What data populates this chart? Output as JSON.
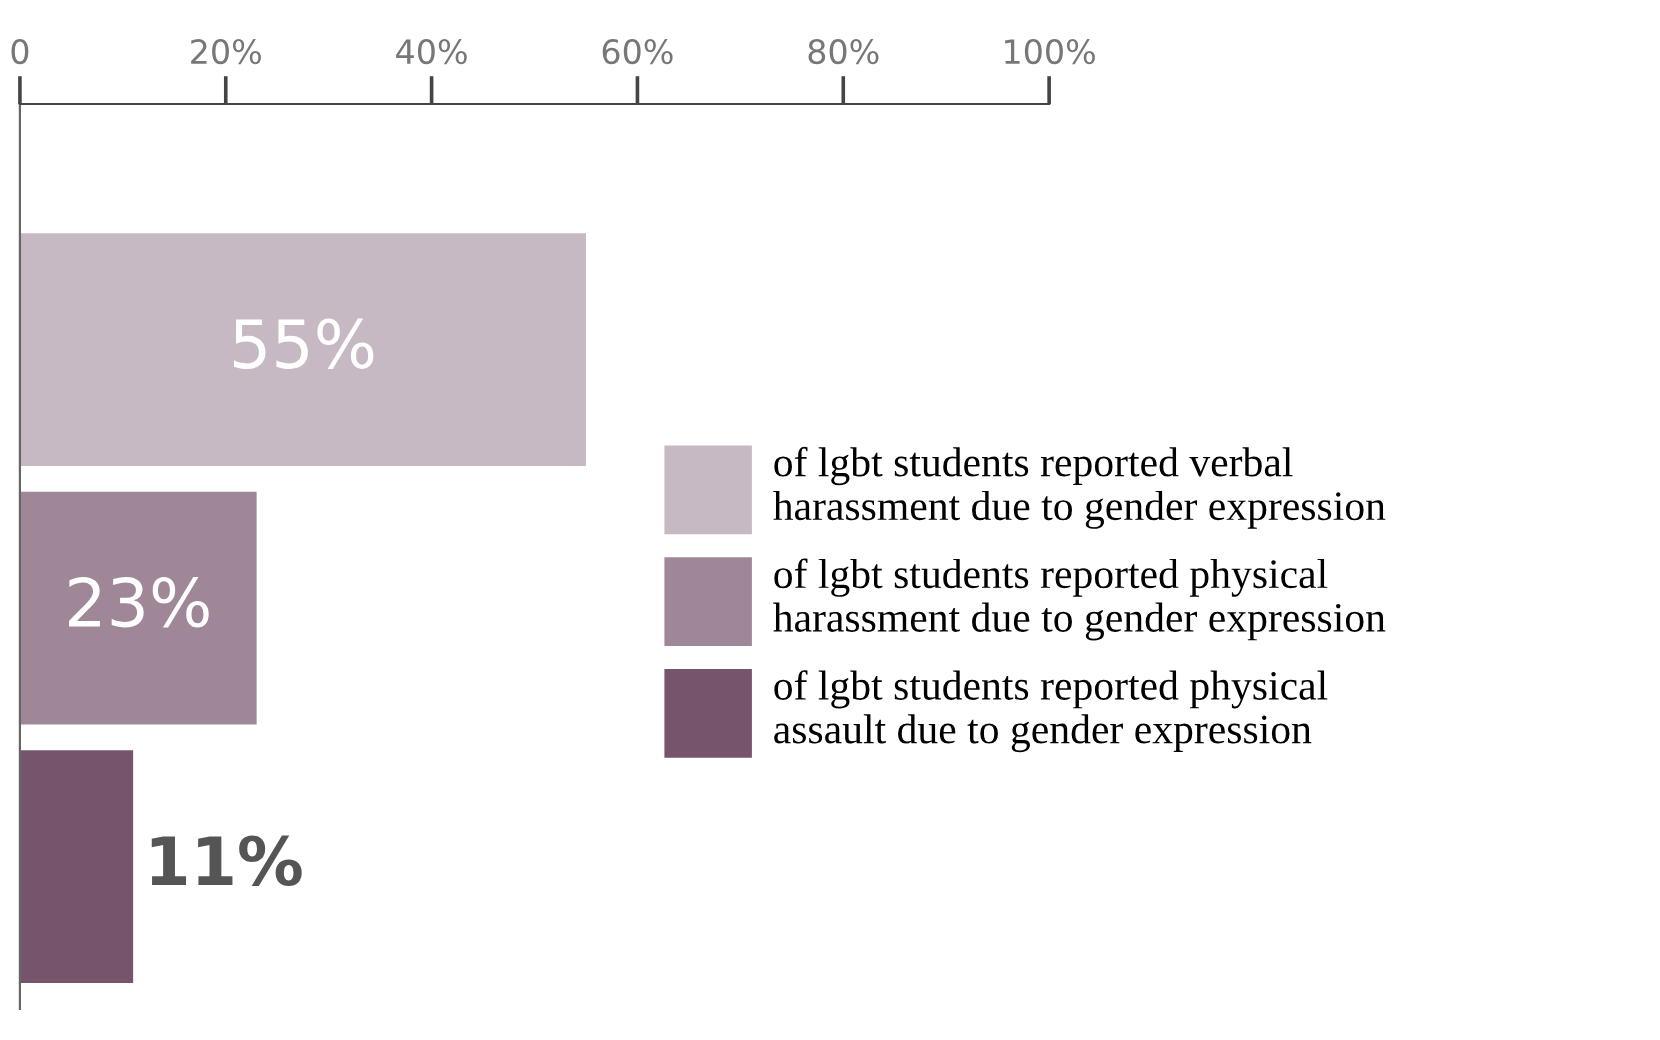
{
  "chart_data": {
    "type": "bar",
    "orientation": "horizontal",
    "categories": [
      null,
      null,
      null
    ],
    "series": [
      {
        "name": "of lgbt students reported verbal\nharassment due to gender expression",
        "color": "#c7b9c4",
        "values": [
          55,
          null,
          null
        ],
        "value_labels": [
          "55%",
          null,
          null
        ]
      },
      {
        "name": "of lgbt students reported physical\nharassment due to gender expression",
        "color": "#a08798",
        "values": [
          null,
          23,
          null
        ],
        "value_labels": [
          null,
          "23%",
          null
        ]
      },
      {
        "name": "of lgbt students reported physical\nassault due to gender expression",
        "color": "#76546c",
        "values": [
          null,
          null,
          11
        ],
        "value_labels": [
          null,
          null,
          "11%"
        ]
      }
    ],
    "xlim": [
      0,
      100
    ],
    "xticks": [
      0,
      {
        "value": 20,
        "label": "20%"
      },
      {
        "value": 40,
        "label": "40%"
      },
      {
        "value": 60,
        "label": "60%"
      },
      {
        "value": 80,
        "label": "80%"
      },
      {
        "value": 100,
        "label": "100%"
      }
    ],
    "grid": false,
    "legend": "right"
  }
}
